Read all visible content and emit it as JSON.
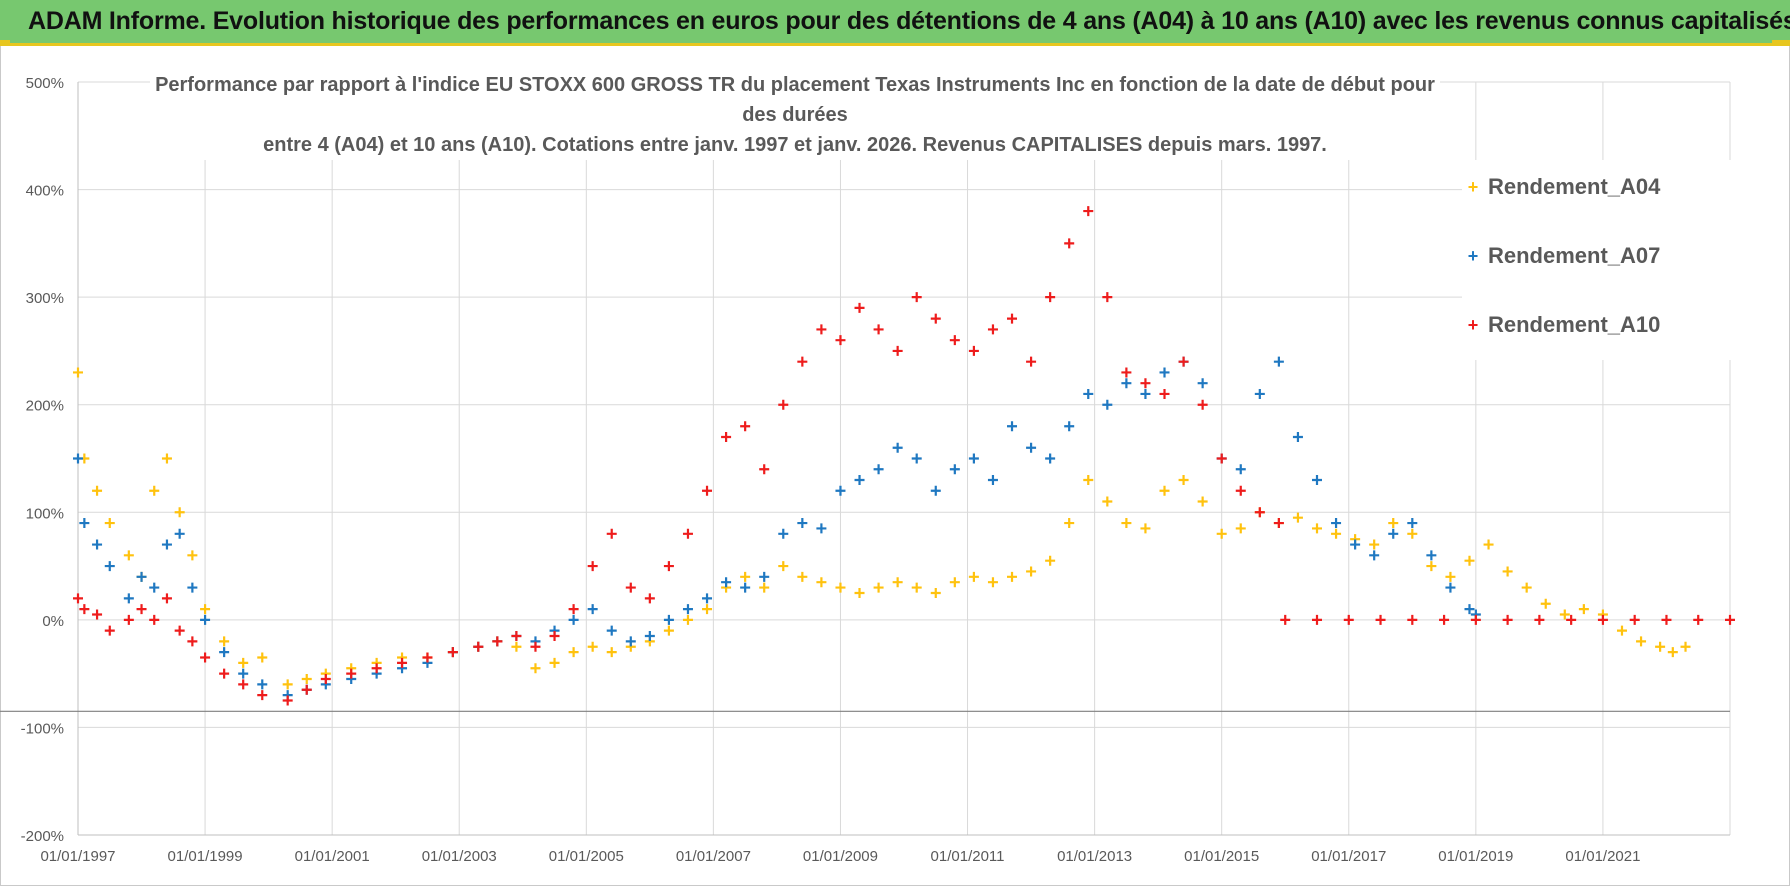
{
  "banner": {
    "text": "ADAM Informe. Evolution historique des performances en euros pour des détentions de 4 ans (A04) à 10 ans (A10) avec les revenus connus capitalisés"
  },
  "chart_data": {
    "type": "scatter",
    "title_line1": "Performance par rapport à l'indice EU STOXX 600 GROSS TR  du placement Texas Instruments Inc en fonction de la date de début pour des durées",
    "title_line2": "entre 4 (A04) et 10 ans (A10). Cotations entre janv. 1997 et janv. 2026. Revenus CAPITALISES depuis mars. 1997.",
    "ylim": [
      -200,
      500
    ],
    "y_ticks": [
      "-200%",
      "-100%",
      "0%",
      "100%",
      "200%",
      "300%",
      "400%",
      "500%"
    ],
    "y_tick_values": [
      -200,
      -100,
      0,
      100,
      200,
      300,
      400,
      500
    ],
    "xlim": [
      1997.0,
      2023.0
    ],
    "x_ticks": [
      "01/01/1997",
      "01/01/1999",
      "01/01/2001",
      "01/01/2003",
      "01/01/2005",
      "01/01/2007",
      "01/01/2009",
      "01/01/2011",
      "01/01/2013",
      "01/01/2015",
      "01/01/2017",
      "01/01/2019",
      "01/01/2021"
    ],
    "x_tick_values": [
      1997,
      1999,
      2001,
      2003,
      2005,
      2007,
      2009,
      2011,
      2013,
      2015,
      2017,
      2019,
      2021
    ],
    "marker": "+",
    "series": [
      {
        "name": "Rendement_A04",
        "color": "#ffc20e",
        "x": [
          1997.0,
          1997.1,
          1997.3,
          1997.5,
          1997.8,
          1998.0,
          1998.2,
          1998.4,
          1998.6,
          1998.8,
          1999.0,
          1999.3,
          1999.6,
          1999.9,
          2000.3,
          2000.6,
          2000.9,
          2001.3,
          2001.7,
          2002.1,
          2002.5,
          2002.9,
          2003.3,
          2003.6,
          2003.9,
          2004.2,
          2004.5,
          2004.8,
          2005.1,
          2005.4,
          2005.7,
          2006.0,
          2006.3,
          2006.6,
          2006.9,
          2007.2,
          2007.5,
          2007.8,
          2008.1,
          2008.4,
          2008.7,
          2009.0,
          2009.3,
          2009.6,
          2009.9,
          2010.2,
          2010.5,
          2010.8,
          2011.1,
          2011.4,
          2011.7,
          2012.0,
          2012.3,
          2012.6,
          2012.9,
          2013.2,
          2013.5,
          2013.8,
          2014.1,
          2014.4,
          2014.7,
          2015.0,
          2015.3,
          2015.6,
          2015.9,
          2016.2,
          2016.5,
          2016.8,
          2017.1,
          2017.4,
          2017.7,
          2018.0,
          2018.3,
          2018.6,
          2018.9,
          2019.2,
          2019.5,
          2019.8,
          2020.1,
          2020.4,
          2020.7,
          2021.0,
          2021.3,
          2021.6,
          2021.9,
          2022.1,
          2022.3
        ],
        "y": [
          230,
          150,
          120,
          90,
          60,
          40,
          120,
          150,
          100,
          60,
          10,
          -20,
          -40,
          -35,
          -60,
          -55,
          -50,
          -45,
          -40,
          -35,
          -35,
          -30,
          -25,
          -20,
          -25,
          -45,
          -40,
          -30,
          -25,
          -30,
          -25,
          -20,
          -10,
          0,
          10,
          30,
          40,
          30,
          50,
          40,
          35,
          30,
          25,
          30,
          35,
          30,
          25,
          35,
          40,
          35,
          40,
          45,
          55,
          90,
          130,
          110,
          90,
          85,
          120,
          130,
          110,
          80,
          85,
          100,
          90,
          95,
          85,
          80,
          75,
          70,
          90,
          80,
          50,
          40,
          55,
          70,
          45,
          30,
          15,
          5,
          10,
          5,
          -10,
          -20,
          -25,
          -30,
          -25
        ]
      },
      {
        "name": "Rendement_A07",
        "color": "#1f78c1",
        "x": [
          1997.0,
          1997.1,
          1997.3,
          1997.5,
          1997.8,
          1998.0,
          1998.2,
          1998.4,
          1998.6,
          1998.8,
          1999.0,
          1999.3,
          1999.6,
          1999.9,
          2000.3,
          2000.6,
          2000.9,
          2001.3,
          2001.7,
          2002.1,
          2002.5,
          2002.9,
          2003.3,
          2003.6,
          2003.9,
          2004.2,
          2004.5,
          2004.8,
          2005.1,
          2005.4,
          2005.7,
          2006.0,
          2006.3,
          2006.6,
          2006.9,
          2007.2,
          2007.5,
          2007.8,
          2008.1,
          2008.4,
          2008.7,
          2009.0,
          2009.3,
          2009.6,
          2009.9,
          2010.2,
          2010.5,
          2010.8,
          2011.1,
          2011.4,
          2011.7,
          2012.0,
          2012.3,
          2012.6,
          2012.9,
          2013.2,
          2013.5,
          2013.8,
          2014.1,
          2014.4,
          2014.7,
          2015.0,
          2015.3,
          2015.6,
          2015.9,
          2016.2,
          2016.5,
          2016.8,
          2017.1,
          2017.4,
          2017.7,
          2018.0,
          2018.3,
          2018.6,
          2018.9,
          2019.0
        ],
        "y": [
          150,
          90,
          70,
          50,
          20,
          40,
          30,
          70,
          80,
          30,
          0,
          -30,
          -50,
          -60,
          -70,
          -65,
          -60,
          -55,
          -50,
          -45,
          -40,
          -30,
          -25,
          -20,
          -15,
          -20,
          -10,
          0,
          10,
          -10,
          -20,
          -15,
          0,
          10,
          20,
          35,
          30,
          40,
          80,
          90,
          85,
          120,
          130,
          140,
          160,
          150,
          120,
          140,
          150,
          130,
          180,
          160,
          150,
          180,
          210,
          200,
          220,
          210,
          230,
          240,
          220,
          150,
          140,
          210,
          240,
          170,
          130,
          90,
          70,
          60,
          80,
          90,
          60,
          30,
          10,
          5
        ]
      },
      {
        "name": "Rendement_A10",
        "color": "#ee1c1c",
        "x": [
          1997.0,
          1997.1,
          1997.3,
          1997.5,
          1997.8,
          1998.0,
          1998.2,
          1998.4,
          1998.6,
          1998.8,
          1999.0,
          1999.3,
          1999.6,
          1999.9,
          2000.3,
          2000.6,
          2000.9,
          2001.3,
          2001.7,
          2002.1,
          2002.5,
          2002.9,
          2003.3,
          2003.6,
          2003.9,
          2004.2,
          2004.5,
          2004.8,
          2005.1,
          2005.4,
          2005.7,
          2006.0,
          2006.3,
          2006.6,
          2006.9,
          2007.2,
          2007.5,
          2007.8,
          2008.1,
          2008.4,
          2008.7,
          2009.0,
          2009.3,
          2009.6,
          2009.9,
          2010.2,
          2010.5,
          2010.8,
          2011.1,
          2011.4,
          2011.7,
          2012.0,
          2012.3,
          2012.6,
          2012.9,
          2013.2,
          2013.5,
          2013.8,
          2014.1,
          2014.4,
          2014.7,
          2015.0,
          2015.3,
          2015.6,
          2015.9,
          2016.0,
          2016.5,
          2017.0,
          2017.5,
          2018.0,
          2018.5,
          2019.0,
          2019.5,
          2020.0,
          2020.5,
          2021.0,
          2021.5,
          2022.0,
          2022.5,
          2023.0
        ],
        "y": [
          20,
          10,
          5,
          -10,
          0,
          10,
          0,
          20,
          -10,
          -20,
          -35,
          -50,
          -60,
          -70,
          -75,
          -65,
          -55,
          -50,
          -45,
          -40,
          -35,
          -30,
          -25,
          -20,
          -15,
          -25,
          -15,
          10,
          50,
          80,
          30,
          20,
          50,
          80,
          120,
          170,
          180,
          140,
          200,
          240,
          270,
          260,
          290,
          270,
          250,
          300,
          280,
          260,
          250,
          270,
          280,
          240,
          300,
          350,
          380,
          300,
          230,
          220,
          210,
          240,
          200,
          150,
          120,
          100,
          90,
          0,
          0,
          0,
          0,
          0,
          0,
          0,
          0,
          0,
          0,
          0,
          0,
          0,
          0,
          0
        ]
      }
    ]
  }
}
